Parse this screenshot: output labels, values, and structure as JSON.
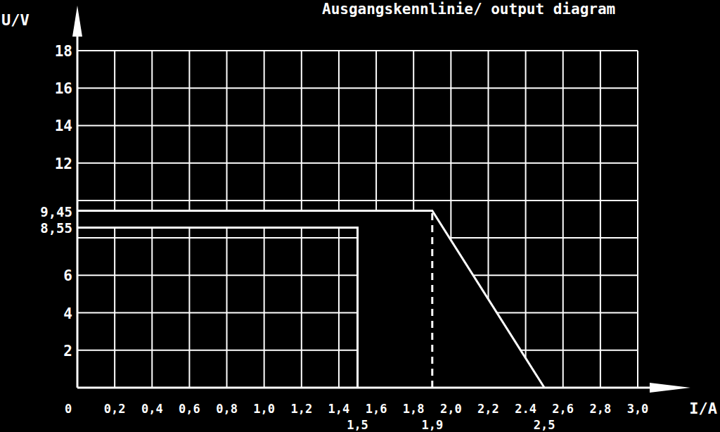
{
  "chart_data": {
    "type": "line",
    "title": "Ausgangskennlinie/ output diagram",
    "x_label": "I/A",
    "y_label": "U/V",
    "xlim": [
      0,
      3.0
    ],
    "ylim": [
      0,
      18
    ],
    "xticks": [
      0,
      {
        "value": 0.2,
        "label": "0,2"
      },
      {
        "value": 0.4,
        "label": "0,4"
      },
      {
        "value": 0.6,
        "label": "0,6"
      },
      {
        "value": 0.8,
        "label": "0,8"
      },
      {
        "value": 1.0,
        "label": "1,0"
      },
      {
        "value": 1.2,
        "label": "1,2"
      },
      {
        "value": 1.4,
        "label": "1,4"
      },
      {
        "value": 1.6,
        "label": "1,6"
      },
      {
        "value": 1.8,
        "label": "1,8"
      },
      {
        "value": 2.0,
        "label": "2,0"
      },
      {
        "value": 2.2,
        "label": "2,2"
      },
      {
        "value": 2.4,
        "label": "2.4"
      },
      {
        "value": 2.6,
        "label": "2,6"
      },
      {
        "value": 2.8,
        "label": "2,8"
      },
      {
        "value": 3.0,
        "label": "3,0"
      }
    ],
    "yticks": [
      2,
      4,
      6,
      {
        "value": 8,
        "label": null
      },
      {
        "value": 10,
        "label": null
      },
      12,
      14,
      16,
      18
    ],
    "grid": true,
    "series": [
      {
        "type": "line",
        "color": "#ffffff",
        "line_style": "solid",
        "x": [
          0,
          1.5,
          1.5
        ],
        "values": [
          8.55,
          8.55,
          0
        ]
      },
      {
        "type": "area",
        "color": "#ffffff",
        "line_style": "solid",
        "x": [
          0,
          1.9,
          2.5
        ],
        "values": [
          9.45,
          9.45,
          0
        ]
      },
      {
        "type": "line",
        "color": "#ffffff",
        "line_style": "dashed",
        "x": [
          1.9,
          1.9
        ],
        "values": [
          0,
          9.45
        ]
      }
    ],
    "annotations": [
      {
        "text": "9,45",
        "x": 0,
        "y": 9.45
      },
      {
        "text": "8,55",
        "x": 0,
        "y": 8.55
      },
      {
        "text": "1,5",
        "x": 1.5,
        "y": 0
      },
      {
        "text": "1,9",
        "x": 1.9,
        "y": 0
      },
      {
        "text": "2,5",
        "x": 2.5,
        "y": 0
      }
    ]
  }
}
